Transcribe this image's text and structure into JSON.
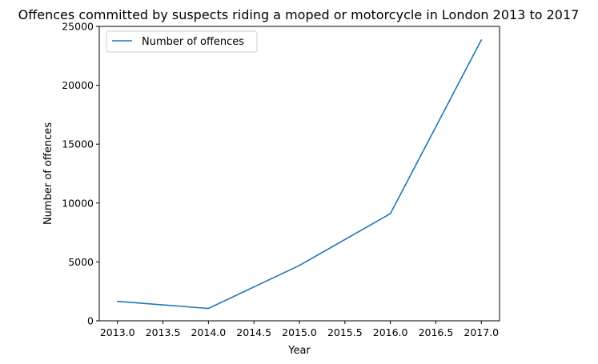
{
  "chart_data": {
    "type": "line",
    "title": "Offences committed by suspects riding a moped or motorcycle in London 2013 to 2017",
    "xlabel": "Year",
    "ylabel": "Number of offences",
    "xlim": [
      2012.8,
      2017.2
    ],
    "ylim": [
      0,
      25000
    ],
    "x_ticks": [
      "2013.0",
      "2013.5",
      "2014.0",
      "2014.5",
      "2015.0",
      "2015.5",
      "2016.0",
      "2016.5",
      "2017.0"
    ],
    "y_ticks": [
      "0",
      "5000",
      "10000",
      "15000",
      "20000",
      "25000"
    ],
    "grid": false,
    "legend_position": "upper-left",
    "series": [
      {
        "name": "Number of offences",
        "color": "#1f77b4",
        "x": [
          2013,
          2014,
          2015,
          2016,
          2017
        ],
        "y": [
          1650,
          1050,
          4700,
          9100,
          23850
        ]
      }
    ]
  }
}
